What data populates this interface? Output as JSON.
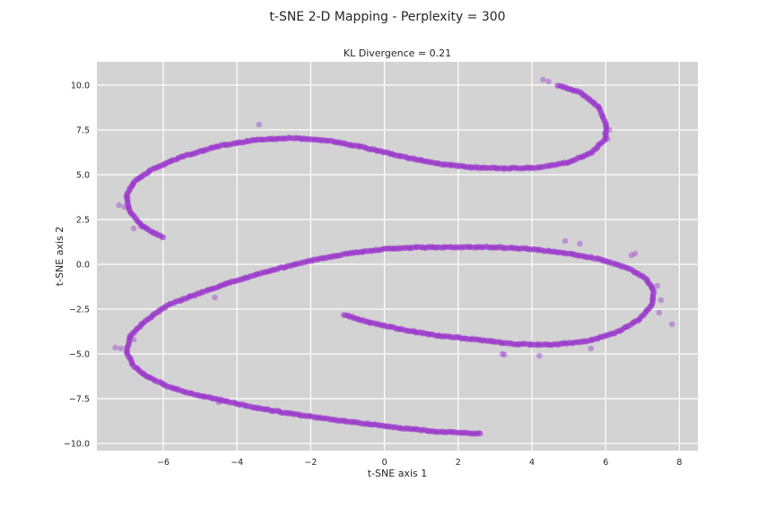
{
  "chart_data": {
    "type": "scatter",
    "suptitle": "t-SNE 2-D Mapping - Perplexity = 300",
    "title": "KL Divergence = 0.21",
    "xlabel": "t-SNE axis 1",
    "ylabel": "t-SNE axis 2",
    "xlim": [
      -7.8,
      8.5
    ],
    "ylim": [
      -10.4,
      11.3
    ],
    "xticks": [
      -6,
      -4,
      -2,
      0,
      2,
      4,
      6,
      8
    ],
    "yticks": [
      -10.0,
      -7.5,
      -5.0,
      -2.5,
      0.0,
      2.5,
      5.0,
      7.5,
      10.0
    ],
    "xtick_labels": [
      "−6",
      "−4",
      "−2",
      "0",
      "2",
      "4",
      "6",
      "8"
    ],
    "ytick_labels": [
      "−10.0",
      "−7.5",
      "−5.0",
      "−2.5",
      "0.0",
      "2.5",
      "5.0",
      "7.5",
      "10.0"
    ],
    "grid": true,
    "background_color": "#d3d3d3",
    "point_color": "#9932cc",
    "upper_curve": {
      "name": "",
      "x": [
        4.7,
        5.3,
        5.8,
        6.0,
        6.0,
        5.6,
        5.0,
        4.2,
        3.3,
        2.4,
        1.5,
        0.5,
        -0.5,
        -1.5,
        -2.5,
        -3.5,
        -4.5,
        -5.5,
        -6.3,
        -6.8,
        -7.0,
        -6.9,
        -6.6,
        -6.3,
        -6.0
      ],
      "y": [
        10.0,
        9.6,
        8.8,
        7.9,
        7.0,
        6.2,
        5.7,
        5.4,
        5.35,
        5.4,
        5.6,
        6.0,
        6.5,
        6.9,
        7.05,
        6.95,
        6.6,
        6.0,
        5.3,
        4.6,
        3.8,
        2.9,
        2.2,
        1.8,
        1.5
      ]
    },
    "lower_curve": {
      "name": "",
      "x": [
        -1.1,
        -0.5,
        0.5,
        1.5,
        2.5,
        3.5,
        4.5,
        5.5,
        6.3,
        6.9,
        7.25,
        7.3,
        7.1,
        6.6,
        5.8,
        5.0,
        4.0,
        3.0,
        2.0,
        1.0,
        0.0,
        -1.0,
        -2.0,
        -3.0,
        -4.0,
        -5.0,
        -5.9,
        -6.5,
        -6.9,
        -7.0,
        -6.8,
        -6.4,
        -5.9,
        -5.2,
        -4.4,
        -3.5,
        -2.5,
        -1.5,
        -0.5,
        0.5,
        1.5,
        2.6
      ],
      "y": [
        -2.8,
        -3.2,
        -3.65,
        -4.0,
        -4.2,
        -4.45,
        -4.5,
        -4.3,
        -3.8,
        -3.1,
        -2.3,
        -1.5,
        -0.8,
        -0.2,
        0.3,
        0.6,
        0.85,
        0.95,
        0.95,
        0.95,
        0.85,
        0.6,
        0.2,
        -0.3,
        -0.9,
        -1.6,
        -2.3,
        -3.2,
        -4.0,
        -4.9,
        -5.7,
        -6.3,
        -6.8,
        -7.25,
        -7.6,
        -8.0,
        -8.35,
        -8.65,
        -8.9,
        -9.15,
        -9.35,
        -9.45
      ]
    },
    "outliers": [
      [
        4.3,
        10.3
      ],
      [
        4.45,
        10.2
      ],
      [
        -3.4,
        7.8
      ],
      [
        6.1,
        7.5
      ],
      [
        6.05,
        7.0
      ],
      [
        -7.2,
        3.3
      ],
      [
        -7.05,
        3.2
      ],
      [
        -6.8,
        2.0
      ],
      [
        -6.6,
        2.1
      ],
      [
        4.9,
        1.3
      ],
      [
        5.3,
        1.15
      ],
      [
        6.8,
        0.6
      ],
      [
        6.7,
        0.5
      ],
      [
        7.4,
        -1.2
      ],
      [
        7.5,
        -2.0
      ],
      [
        7.45,
        -2.7
      ],
      [
        7.8,
        -3.35
      ],
      [
        5.6,
        -4.7
      ],
      [
        3.2,
        -5.0
      ],
      [
        3.25,
        -5.05
      ],
      [
        4.2,
        -5.1
      ],
      [
        -4.6,
        -1.85
      ],
      [
        -7.15,
        -4.7
      ],
      [
        -7.3,
        -4.65
      ],
      [
        -6.55,
        -6.1
      ],
      [
        -4.5,
        -7.7
      ],
      [
        -6.8,
        -4.2
      ]
    ]
  }
}
